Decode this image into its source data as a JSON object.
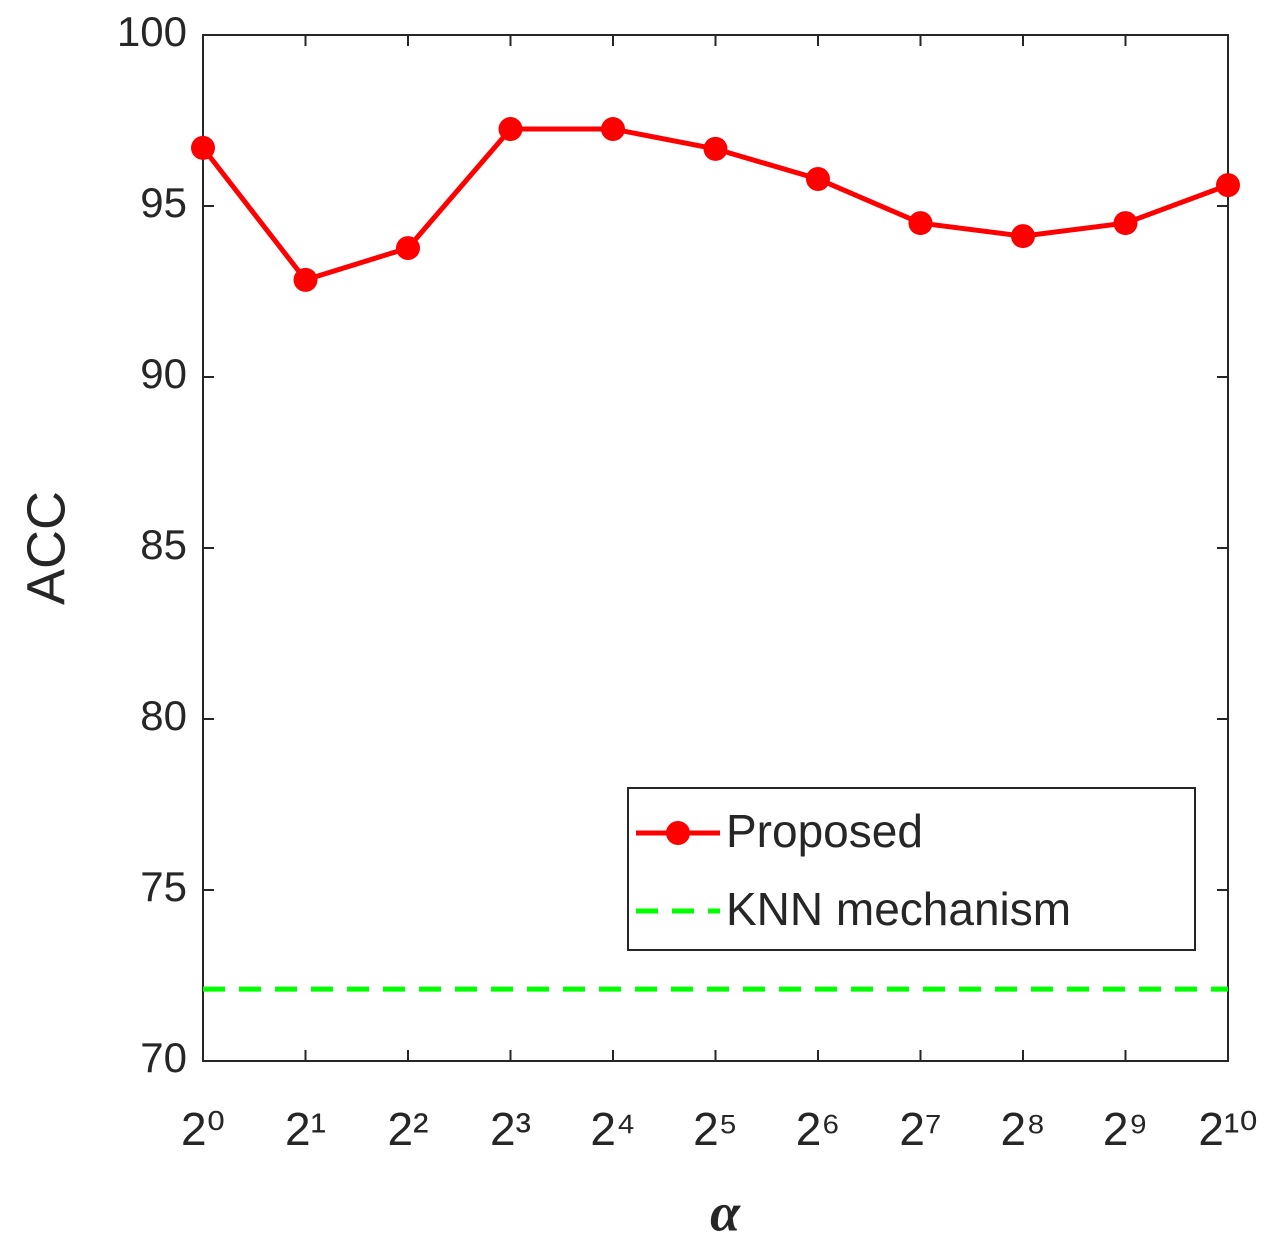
{
  "chart_data": {
    "type": "line",
    "categories": [
      "2⁰",
      "2¹",
      "2²",
      "2³",
      "2⁴",
      "2⁵",
      "2⁶",
      "2⁷",
      "2⁸",
      "2⁹",
      "2¹⁰"
    ],
    "x_label": "α",
    "y_label": "ACC",
    "series": [
      {
        "name": "Proposed",
        "color": "#ff0000",
        "style": "solid",
        "markers": true,
        "values": [
          96.7,
          92.84,
          93.77,
          97.25,
          97.25,
          96.67,
          95.79,
          94.5,
          94.12,
          94.5,
          95.61
        ]
      },
      {
        "name": "KNN mechanism",
        "color": "#00ff00",
        "style": "dashed",
        "markers": false,
        "values": [
          72.1,
          72.1,
          72.1,
          72.1,
          72.1,
          72.1,
          72.1,
          72.1,
          72.1,
          72.1,
          72.1
        ]
      }
    ],
    "ylim": [
      70,
      100
    ],
    "yticks": [
      70,
      75,
      80,
      85,
      90,
      95,
      100
    ],
    "legend": "lower right"
  }
}
